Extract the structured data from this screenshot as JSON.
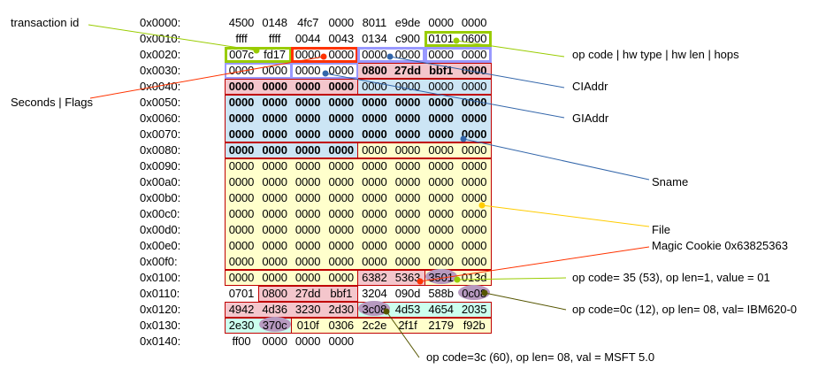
{
  "offsets": [
    "0x0000:",
    "0x0010:",
    "0x0020:",
    "0x0030:",
    "0x0040:",
    "0x0050:",
    "0x0060:",
    "0x0070:",
    "0x0080:",
    "0x0090:",
    "0x00a0:",
    "0x00b0:",
    "0x00c0:",
    "0x00d0:",
    "0x00e0:",
    "0x00f0:",
    "0x0100:",
    "0x0110:",
    "0x0120:",
    "0x0130:",
    "0x0140:"
  ],
  "hex_rows": [
    [
      "4500",
      "0148",
      "4fc7",
      "0000",
      "8011",
      "e9de",
      "0000",
      "0000"
    ],
    [
      "ffff",
      "ffff",
      "0044",
      "0043",
      "0134",
      "c900",
      "0101",
      "0600"
    ],
    [
      "007c",
      "fd17",
      "0000",
      "0000",
      "0000",
      "0000",
      "0000",
      "0000"
    ],
    [
      "0000",
      "0000",
      "0000",
      "0000",
      "0800",
      "27dd",
      "bbf1",
      "0000"
    ],
    [
      "0000",
      "0000",
      "0000",
      "0000",
      "0000",
      "0000",
      "0000",
      "0000"
    ],
    [
      "0000",
      "0000",
      "0000",
      "0000",
      "0000",
      "0000",
      "0000",
      "0000"
    ],
    [
      "0000",
      "0000",
      "0000",
      "0000",
      "0000",
      "0000",
      "0000",
      "0000"
    ],
    [
      "0000",
      "0000",
      "0000",
      "0000",
      "0000",
      "0000",
      "0000",
      "0000"
    ],
    [
      "0000",
      "0000",
      "0000",
      "0000",
      "0000",
      "0000",
      "0000",
      "0000"
    ],
    [
      "0000",
      "0000",
      "0000",
      "0000",
      "0000",
      "0000",
      "0000",
      "0000"
    ],
    [
      "0000",
      "0000",
      "0000",
      "0000",
      "0000",
      "0000",
      "0000",
      "0000"
    ],
    [
      "0000",
      "0000",
      "0000",
      "0000",
      "0000",
      "0000",
      "0000",
      "0000"
    ],
    [
      "0000",
      "0000",
      "0000",
      "0000",
      "0000",
      "0000",
      "0000",
      "0000"
    ],
    [
      "0000",
      "0000",
      "0000",
      "0000",
      "0000",
      "0000",
      "0000",
      "0000"
    ],
    [
      "0000",
      "0000",
      "0000",
      "0000",
      "0000",
      "0000",
      "0000",
      "0000"
    ],
    [
      "0000",
      "0000",
      "0000",
      "0000",
      "0000",
      "0000",
      "0000",
      "0000"
    ],
    [
      "0000",
      "0000",
      "0000",
      "0000",
      "6382",
      "5363",
      "3501",
      "013d"
    ],
    [
      "0701",
      "0800",
      "27dd",
      "bbf1",
      "3204",
      "090d",
      "588b",
      "0c08"
    ],
    [
      "4942",
      "4d36",
      "3230",
      "2d30",
      "3c08",
      "4d53",
      "4654",
      "2035"
    ],
    [
      "2e30",
      "370c",
      "010f",
      "0306",
      "2c2e",
      "2f1f",
      "2179",
      "f92b"
    ],
    [
      "ff00",
      "0000",
      "0000",
      "0000"
    ]
  ],
  "labels": {
    "transaction_id": "transaction id",
    "seconds_flags": "Seconds | Flags",
    "opcode_hw": "op code | hw type | hw len | hops",
    "ciaddr": "CIAddr",
    "giaddr": "GIAddr",
    "sname": "Sname",
    "file": "File",
    "magic_cookie": "Magic Cookie 0x63825363",
    "opt53": "op code= 35 (53), op len=1, value = 01",
    "opt12": "op code=0c (12), op len= 08, val= IBM620-0",
    "opt60": "op code=3c (60), op len= 08, val = MSFT 5.0"
  },
  "colors": {
    "green_box": "#99cc00",
    "orange_box": "#ff3300",
    "blue_box": "#9999ff",
    "pink_fill": "#f4c6cc",
    "blue_fill": "#cce5f5",
    "yellow_fill": "#ffffcc",
    "teal_fill": "#ccffee",
    "red_border": "#c00000",
    "oval_fill": "#b79ac0",
    "line_yellow": "#ffcc00",
    "line_red": "#ff3300",
    "line_blue": "#3366aa",
    "line_green": "#99cc00",
    "line_dark": "#555500"
  }
}
